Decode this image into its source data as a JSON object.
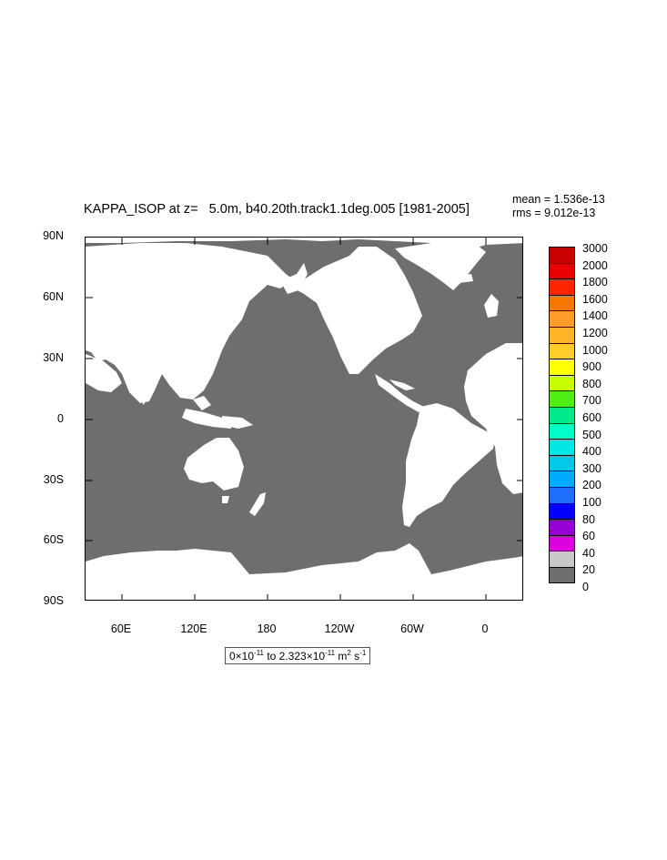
{
  "title": "KAPPA_ISOP at z=   5.0m, b40.20th.track1.1deg.005 [1981-2005]",
  "stats": {
    "mean": "mean = 1.536e-13",
    "rms": "rms = 9.012e-13"
  },
  "lat_labels": [
    "90N",
    "60N",
    "30N",
    "0",
    "30S",
    "60S",
    "90S"
  ],
  "lon_labels": [
    "60E",
    "120E",
    "180",
    "120W",
    "60W",
    "0"
  ],
  "legend": {
    "levels": [
      "3000",
      "2000",
      "1800",
      "1600",
      "1400",
      "1200",
      "1000",
      "900",
      "800",
      "700",
      "600",
      "500",
      "400",
      "300",
      "200",
      "100",
      "80",
      "60",
      "40",
      "20",
      "0"
    ],
    "colors": [
      "#c80000",
      "#e80000",
      "#ff2400",
      "#f47800",
      "#ff9c28",
      "#ffb428",
      "#ffcc28",
      "#ffff00",
      "#c8ff00",
      "#50ee14",
      "#00e88c",
      "#00ffc8",
      "#00e6e6",
      "#00c8e6",
      "#00aaff",
      "#1e6eff",
      "#0000ff",
      "#9600d2",
      "#dc00dc",
      "#c8c8c8",
      "#6e6e6e"
    ]
  },
  "range": {
    "pre": "0×10",
    "e1": "-11",
    "mid": " to 2.323×10",
    "e2": "-11",
    "post1": " m",
    "e3": "2",
    "post2": " s",
    "e4": "-1"
  },
  "map_colors": {
    "ocean": "#6e6e6e",
    "land": "#ffffff"
  }
}
